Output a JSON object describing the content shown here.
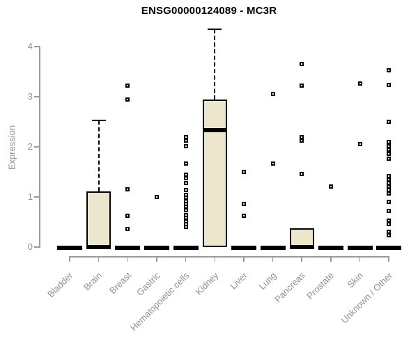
{
  "chart_data": {
    "type": "boxplot",
    "title": "ENSG00000124089 - MC3R",
    "ylabel": "Expression",
    "xlabel": "",
    "ylim": [
      0,
      4.45
    ],
    "yticks": [
      0,
      1,
      2,
      3,
      4
    ],
    "grid": false,
    "legend": "none",
    "categories": [
      "Bladder",
      "Brain",
      "Breast",
      "Gastric",
      "Hematopoietic cells",
      "Kidney",
      "Liver",
      "Lung",
      "Pancreas",
      "Prostate",
      "Skin",
      "Unknown / Other"
    ],
    "boxes": [
      {
        "category": "Bladder",
        "q1": 0,
        "median": 0,
        "q3": 0,
        "whisker_low": 0,
        "whisker_high": 0,
        "outliers": []
      },
      {
        "category": "Brain",
        "q1": 0,
        "median": 0,
        "q3": 1.11,
        "whisker_low": 0,
        "whisker_high": 2.53,
        "outliers": []
      },
      {
        "category": "Breast",
        "q1": 0,
        "median": 0,
        "q3": 0,
        "whisker_low": 0,
        "whisker_high": 0,
        "outliers": [
          3.22,
          2.94,
          1.15,
          0.63,
          0.36
        ]
      },
      {
        "category": "Gastric",
        "q1": 0,
        "median": 0,
        "q3": 0,
        "whisker_low": 0,
        "whisker_high": 0,
        "outliers": [
          1.0
        ]
      },
      {
        "category": "Hematopoietic cells",
        "q1": 0,
        "median": 0,
        "q3": 0,
        "whisker_low": 0,
        "whisker_high": 0,
        "outliers": [
          2.2,
          2.12,
          2.01,
          1.66,
          1.45,
          1.37,
          1.28,
          1.14,
          1.04,
          0.99,
          0.92,
          0.86,
          0.8,
          0.74,
          0.64,
          0.58,
          0.52,
          0.46,
          0.4
        ]
      },
      {
        "category": "Kidney",
        "q1": 0,
        "median": 2.33,
        "q3": 2.94,
        "whisker_low": 0,
        "whisker_high": 4.35,
        "outliers": []
      },
      {
        "category": "Liver",
        "q1": 0,
        "median": 0,
        "q3": 0,
        "whisker_low": 0,
        "whisker_high": 0,
        "outliers": [
          1.5,
          0.86,
          0.63
        ]
      },
      {
        "category": "Lung",
        "q1": 0,
        "median": 0,
        "q3": 0,
        "whisker_low": 0,
        "whisker_high": 0,
        "outliers": [
          3.05,
          1.67
        ]
      },
      {
        "category": "Pancreas",
        "q1": 0,
        "median": 0,
        "q3": 0.37,
        "whisker_low": 0,
        "whisker_high": 0.37,
        "outliers": [
          3.65,
          3.22,
          2.2,
          2.12,
          1.46
        ]
      },
      {
        "category": "Prostate",
        "q1": 0,
        "median": 0,
        "q3": 0,
        "whisker_low": 0,
        "whisker_high": 0,
        "outliers": [
          1.21
        ]
      },
      {
        "category": "Skin",
        "q1": 0,
        "median": 0,
        "q3": 0,
        "whisker_low": 0,
        "whisker_high": 0,
        "outliers": [
          3.27,
          2.05
        ]
      },
      {
        "category": "Unknown / Other",
        "q1": 0,
        "median": 0,
        "q3": 0,
        "whisker_low": 0,
        "whisker_high": 0,
        "outliers": [
          3.53,
          3.24,
          2.5,
          2.1,
          2.02,
          1.94,
          1.86,
          1.76,
          1.42,
          1.35,
          1.28,
          1.21,
          1.14,
          1.07,
          0.9,
          0.72,
          0.53,
          0.46,
          0.31,
          0.24
        ]
      }
    ],
    "colors": {
      "box_fill": "#ECE7CC",
      "box_border": "#000000",
      "axis": "#9a9a9a",
      "label_text": "#8f8f8f",
      "title_text": "#000000",
      "background": "#ffffff"
    }
  }
}
